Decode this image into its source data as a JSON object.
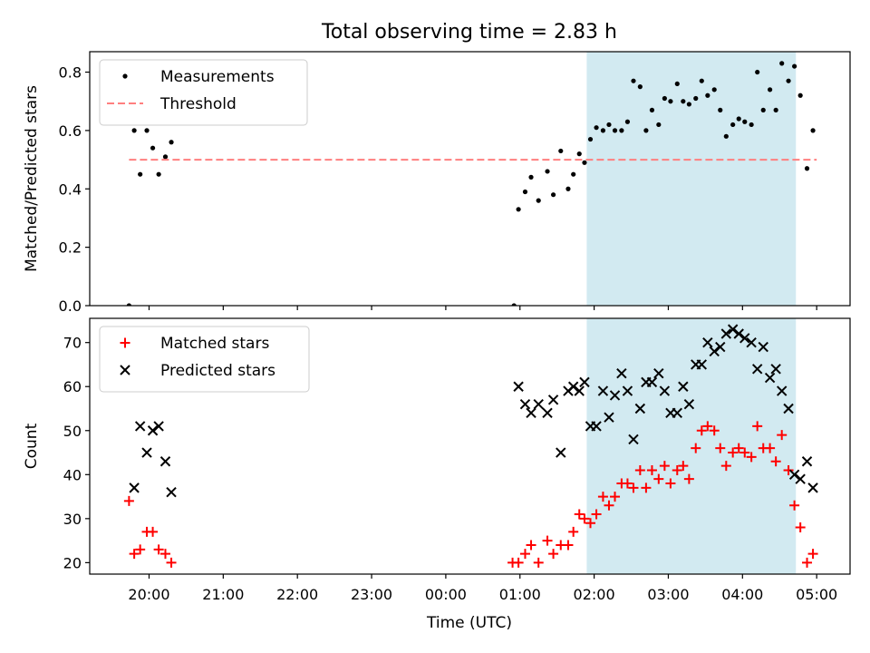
{
  "title": "Total observing time = 2.83 h",
  "colors": {
    "measurements": "#000000",
    "threshold": "#ff7f7f",
    "matched": "#ff0000",
    "predicted": "#000000",
    "observing_window": "#add8e6"
  },
  "shared_x": {
    "label": "Time (UTC)",
    "unit": "hours after 00:00 UTC (negative = previous day)",
    "range": [
      -4.8,
      5.45
    ],
    "tick_values": [
      -4,
      -3,
      -2,
      -1,
      0,
      1,
      2,
      3,
      4,
      5
    ],
    "tick_labels": [
      "20:00",
      "21:00",
      "22:00",
      "23:00",
      "00:00",
      "01:00",
      "02:00",
      "03:00",
      "04:00",
      "05:00"
    ]
  },
  "chart_data": [
    {
      "type": "scatter",
      "panel": "top",
      "ylabel": "Matched/Predicted stars",
      "ylim": [
        0,
        0.87
      ],
      "ytick_labels": [
        "0.0",
        "0.2",
        "0.4",
        "0.6",
        "0.8"
      ],
      "ytick_values": [
        0,
        0.2,
        0.4,
        0.6,
        0.8
      ],
      "legend": {
        "position": "upper left",
        "entries": [
          "Measurements",
          "Threshold"
        ]
      },
      "shaded_region": [
        1.9,
        4.72
      ],
      "series": [
        {
          "name": "Measurements",
          "type": "scatter",
          "x": [
            -4.27,
            -4.2,
            -4.12,
            -4.03,
            -3.95,
            -3.87,
            -3.78,
            -3.7,
            0.92,
            0.98,
            1.07,
            1.15,
            1.25,
            1.37,
            1.45,
            1.55,
            1.65,
            1.72,
            1.8,
            1.87,
            1.95,
            2.03,
            2.12,
            2.2,
            2.28,
            2.37,
            2.45,
            2.53,
            2.62,
            2.7,
            2.78,
            2.87,
            2.95,
            3.03,
            3.12,
            3.2,
            3.28,
            3.37,
            3.45,
            3.53,
            3.62,
            3.7,
            3.78,
            3.87,
            3.95,
            4.03,
            4.12,
            4.2,
            4.28,
            4.37,
            4.45,
            4.53,
            4.62,
            4.7,
            4.78,
            4.87,
            4.95
          ],
          "y": [
            0.0,
            0.6,
            0.45,
            0.6,
            0.54,
            0.45,
            0.51,
            0.56,
            0.0,
            0.33,
            0.39,
            0.44,
            0.36,
            0.46,
            0.38,
            0.53,
            0.4,
            0.45,
            0.52,
            0.49,
            0.57,
            0.61,
            0.6,
            0.62,
            0.6,
            0.6,
            0.63,
            0.77,
            0.75,
            0.6,
            0.67,
            0.62,
            0.71,
            0.7,
            0.76,
            0.7,
            0.69,
            0.71,
            0.77,
            0.72,
            0.74,
            0.67,
            0.58,
            0.62,
            0.64,
            0.63,
            0.62,
            0.8,
            0.67,
            0.74,
            0.67,
            0.83,
            0.77,
            0.82,
            0.72,
            0.47,
            0.6
          ]
        },
        {
          "name": "Threshold",
          "type": "hline",
          "y": 0.5,
          "x": [
            -4.27,
            5.0
          ]
        }
      ]
    },
    {
      "type": "scatter",
      "panel": "bottom",
      "xlabel": "Time (UTC)",
      "ylabel": "Count",
      "ylim": [
        17.4,
        75.5
      ],
      "ytick_labels": [
        "20",
        "30",
        "40",
        "50",
        "60",
        "70"
      ],
      "ytick_values": [
        20,
        30,
        40,
        50,
        60,
        70
      ],
      "legend": {
        "position": "upper left",
        "entries": [
          "Matched stars",
          "Predicted stars"
        ]
      },
      "shaded_region": [
        1.9,
        4.72
      ],
      "series": [
        {
          "name": "Matched stars",
          "marker": "plus",
          "x": [
            -4.27,
            -4.2,
            -4.12,
            -4.03,
            -3.95,
            -3.87,
            -3.78,
            -3.7,
            0.9,
            0.98,
            1.07,
            1.15,
            1.25,
            1.37,
            1.45,
            1.55,
            1.65,
            1.72,
            1.8,
            1.87,
            1.95,
            2.03,
            2.12,
            2.2,
            2.28,
            2.37,
            2.45,
            2.53,
            2.62,
            2.7,
            2.78,
            2.87,
            2.95,
            3.03,
            3.12,
            3.2,
            3.28,
            3.37,
            3.45,
            3.53,
            3.62,
            3.7,
            3.78,
            3.87,
            3.95,
            4.03,
            4.12,
            4.2,
            4.28,
            4.37,
            4.45,
            4.53,
            4.62,
            4.7,
            4.78,
            4.87,
            4.95
          ],
          "y": [
            34,
            22,
            23,
            27,
            27,
            23,
            22,
            20,
            20,
            20,
            22,
            24,
            20,
            25,
            22,
            24,
            24,
            27,
            31,
            30,
            29,
            31,
            35,
            33,
            35,
            38,
            38,
            37,
            41,
            37,
            41,
            39,
            42,
            38,
            41,
            42,
            39,
            46,
            50,
            51,
            50,
            46,
            42,
            45,
            46,
            45,
            44,
            51,
            46,
            46,
            43,
            49,
            41,
            33,
            28,
            20,
            22
          ]
        },
        {
          "name": "Predicted stars",
          "marker": "x",
          "x": [
            -4.2,
            -4.12,
            -4.03,
            -3.95,
            -3.87,
            -3.78,
            -3.7,
            0.98,
            1.07,
            1.15,
            1.25,
            1.37,
            1.45,
            1.55,
            1.65,
            1.72,
            1.8,
            1.87,
            1.95,
            2.03,
            2.12,
            2.2,
            2.28,
            2.37,
            2.45,
            2.53,
            2.62,
            2.7,
            2.78,
            2.87,
            2.95,
            3.03,
            3.12,
            3.2,
            3.28,
            3.37,
            3.45,
            3.53,
            3.62,
            3.7,
            3.78,
            3.87,
            3.95,
            4.03,
            4.12,
            4.2,
            4.28,
            4.37,
            4.45,
            4.53,
            4.62,
            4.7,
            4.78,
            4.87,
            4.95
          ],
          "y": [
            37,
            51,
            45,
            50,
            51,
            43,
            36,
            60,
            56,
            54,
            56,
            54,
            57,
            45,
            59,
            60,
            59,
            61,
            51,
            51,
            59,
            53,
            58,
            63,
            59,
            48,
            55,
            61,
            61,
            63,
            59,
            54,
            54,
            60,
            56,
            65,
            65,
            70,
            68,
            69,
            72,
            73,
            72,
            71,
            70,
            64,
            69,
            62,
            64,
            59,
            55,
            40,
            39,
            43,
            37
          ]
        }
      ]
    }
  ]
}
